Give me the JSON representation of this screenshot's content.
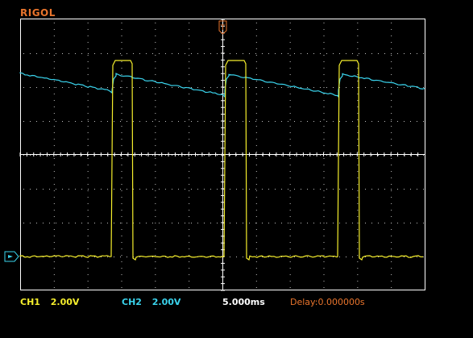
{
  "brand": "RIGOL",
  "status": {
    "ch1_label": "CH1",
    "ch1_scale": "2.00V",
    "ch2_label": "CH2",
    "ch2_scale": "2.00V",
    "timebase": "5.000ms",
    "delay": "Delay:0.000000s"
  },
  "colors": {
    "ch1": "#f5ee2c",
    "ch2": "#3ad3ec",
    "brand": "#e8742c",
    "grid": "#ffffff"
  },
  "icons": {
    "trigger_marker": "trigger-position-icon",
    "ground_marker": "ch1-ground-marker-icon"
  }
}
